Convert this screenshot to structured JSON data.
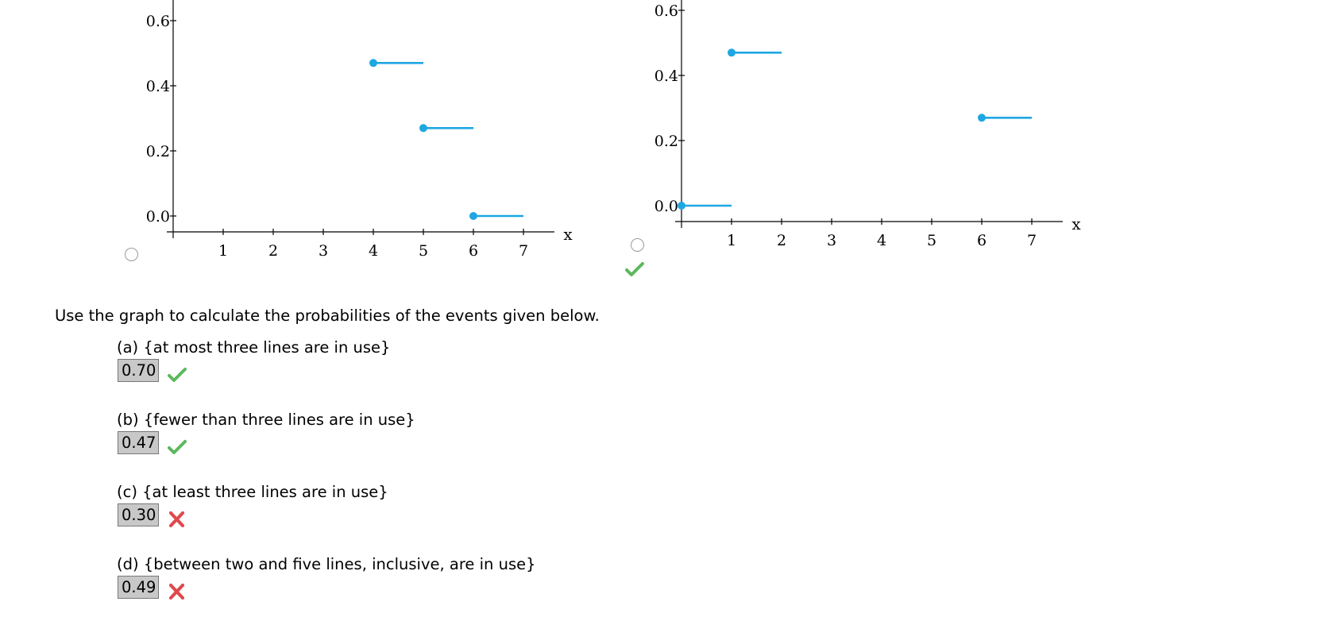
{
  "charts": [
    {
      "y_ticks": [
        "0.0",
        "0.2",
        "0.4",
        "0.6"
      ],
      "x_ticks": [
        "1",
        "2",
        "3",
        "4",
        "5",
        "6",
        "7"
      ],
      "x_axis_label": "x",
      "chart_data": {
        "type": "step",
        "x_tick_values": [
          1,
          2,
          3,
          4,
          5,
          6,
          7
        ],
        "y_tick_values": [
          0.0,
          0.2,
          0.4,
          0.6
        ],
        "xlim": [
          0,
          7.8
        ],
        "ylim": [
          -0.05,
          0.66
        ],
        "segments": [
          {
            "x_start": 4,
            "x_end": 5,
            "y": 0.47
          },
          {
            "x_start": 5,
            "x_end": 6,
            "y": 0.27
          },
          {
            "x_start": 6,
            "x_end": 7,
            "y": 0.0
          }
        ],
        "color": "#1ea7e2"
      }
    },
    {
      "y_ticks": [
        "0.0",
        "0.2",
        "0.4",
        "0.6"
      ],
      "x_ticks": [
        "1",
        "2",
        "3",
        "4",
        "5",
        "6",
        "7"
      ],
      "x_axis_label": "x",
      "chart_data": {
        "type": "step",
        "x_tick_values": [
          1,
          2,
          3,
          4,
          5,
          6,
          7
        ],
        "y_tick_values": [
          0.0,
          0.2,
          0.4,
          0.6
        ],
        "xlim": [
          0,
          7.8
        ],
        "ylim": [
          -0.05,
          0.66
        ],
        "segments": [
          {
            "x_start": 0,
            "x_end": 1,
            "y": 0.0
          },
          {
            "x_start": 1,
            "x_end": 2,
            "y": 0.47
          },
          {
            "x_start": 6,
            "x_end": 7,
            "y": 0.27
          }
        ],
        "color": "#1ea7e2"
      }
    }
  ],
  "options": [
    {
      "selected": false,
      "marked": "none"
    },
    {
      "selected": false,
      "marked": "correct"
    }
  ],
  "instruction": "Use the graph to calculate the probabilities of the events given below.",
  "questions": [
    {
      "label": "(a) {at most three lines are in use}",
      "answer": "0.70",
      "status": "correct"
    },
    {
      "label": "(b) {fewer than three lines are in use}",
      "answer": "0.47",
      "status": "correct"
    },
    {
      "label": "(c) {at least three lines are in use}",
      "answer": "0.30",
      "status": "incorrect"
    },
    {
      "label": "(d) {between two and five lines, inclusive, are in use}",
      "answer": "0.49",
      "status": "incorrect"
    }
  ],
  "colors": {
    "correct": "#5cb85c",
    "incorrect": "#e0484d",
    "series": "#1ea7e2"
  },
  "icons": {
    "correct": "check-icon",
    "incorrect": "cross-icon"
  }
}
